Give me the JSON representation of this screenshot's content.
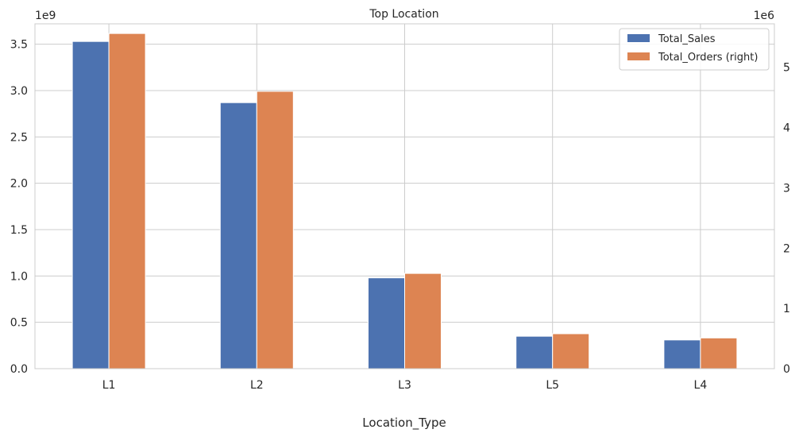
{
  "chart_data": {
    "type": "bar",
    "title": "Top Location",
    "xlabel": "Location_Type",
    "ylabel": "",
    "ylabel_right": "",
    "categories": [
      "L1",
      "L2",
      "L3",
      "L5",
      "L4"
    ],
    "y_left_exponent_label": "1e9",
    "y_right_exponent_label": "1e6",
    "ylim": [
      0,
      3.72
    ],
    "ylim_right": [
      0,
      5.72
    ],
    "yticks": [
      0,
      0.5,
      1.0,
      1.5,
      2.0,
      2.5,
      3.0,
      3.5
    ],
    "yticks_right": [
      0,
      1,
      2,
      3,
      4,
      5
    ],
    "series": [
      {
        "name": "Total_Sales",
        "axis": "left",
        "color": "#4c72b0",
        "values": [
          3.53,
          2.87,
          0.98,
          0.35,
          0.31
        ]
      },
      {
        "name": "Total_Orders (right)",
        "axis": "right",
        "color": "#dd8452",
        "values": [
          5.56,
          4.6,
          1.58,
          0.58,
          0.51
        ]
      }
    ],
    "grid": true,
    "legend_position": "upper-right"
  }
}
